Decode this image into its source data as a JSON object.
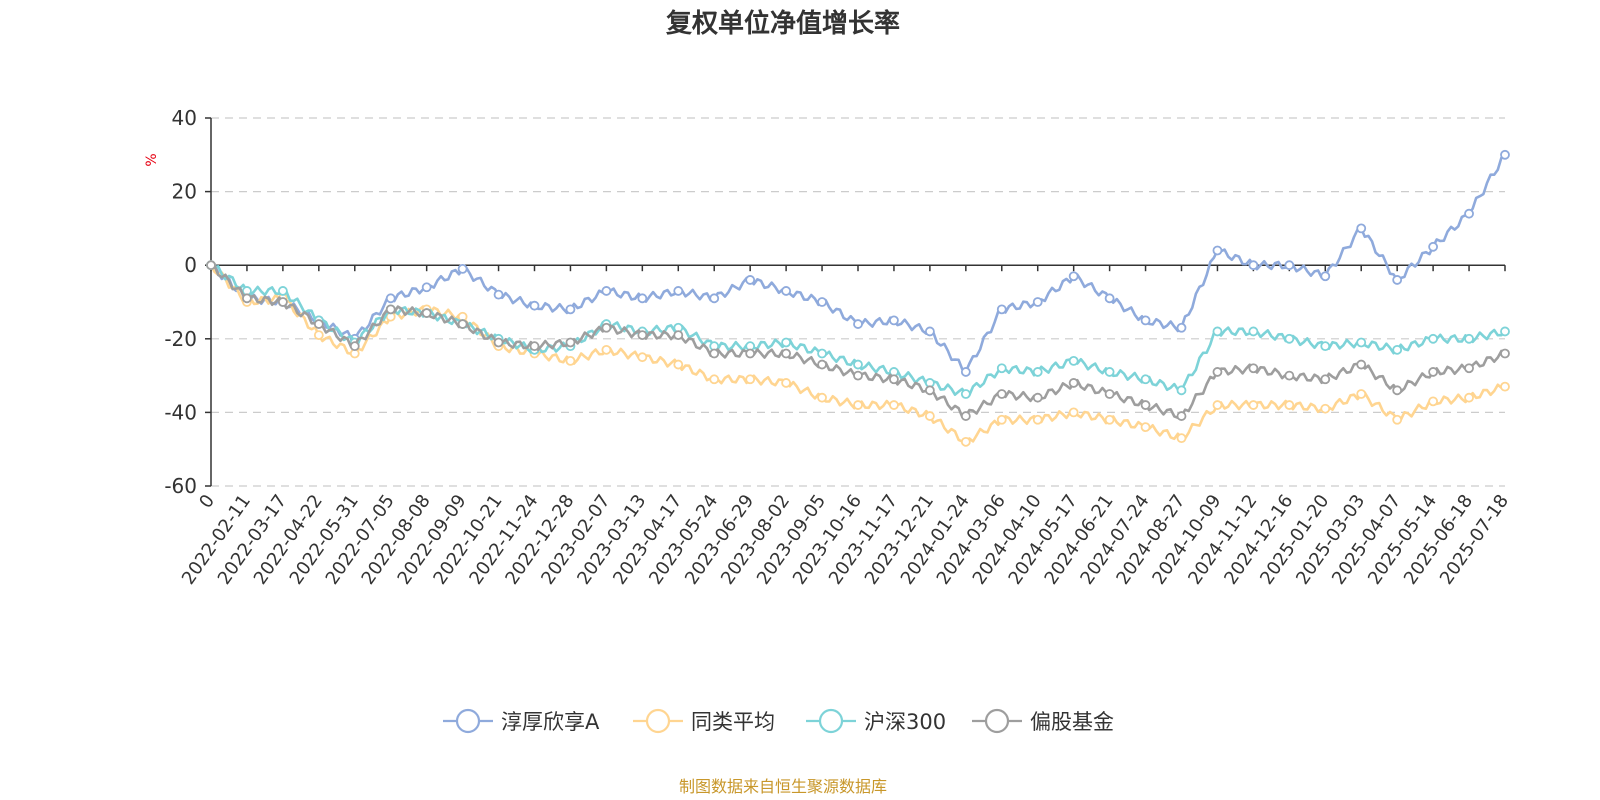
{
  "chart_data": {
    "type": "line",
    "title": "复权单位净值增长率",
    "ylabel": "%",
    "ylim": [
      -60,
      40
    ],
    "yticks": [
      40,
      20,
      0,
      -20,
      -40,
      -60
    ],
    "grid": true,
    "legend_position": "bottom",
    "source": "制图数据来自恒生聚源数据库",
    "categories": [
      "0",
      "2022-02-11",
      "2022-03-17",
      "2022-04-22",
      "2022-05-31",
      "2022-07-05",
      "2022-08-08",
      "2022-09-09",
      "2022-10-21",
      "2022-11-24",
      "2022-12-28",
      "2023-02-07",
      "2023-03-13",
      "2023-04-17",
      "2023-05-24",
      "2023-06-29",
      "2023-08-02",
      "2023-09-05",
      "2023-10-16",
      "2023-11-17",
      "2023-12-21",
      "2024-01-24",
      "2024-03-06",
      "2024-04-10",
      "2024-05-17",
      "2024-06-21",
      "2024-07-24",
      "2024-08-27",
      "2024-10-09",
      "2024-11-12",
      "2024-12-16",
      "2025-01-20",
      "2025-03-03",
      "2025-04-07",
      "2025-05-14",
      "2025-06-18",
      "2025-07-18"
    ],
    "series": [
      {
        "name": "淳厚欣享A",
        "color": "#8faadc",
        "values": [
          0,
          -9,
          -10,
          -15,
          -20,
          -9,
          -6,
          -1,
          -8,
          -11,
          -12,
          -7,
          -9,
          -7,
          -9,
          -4,
          -7,
          -10,
          -16,
          -15,
          -18,
          -29,
          -12,
          -10,
          -3,
          -9,
          -15,
          -17,
          4,
          0,
          0,
          -3,
          10,
          -4,
          5,
          14,
          30
        ]
      },
      {
        "name": "同类平均",
        "color": "#ffd591",
        "values": [
          0,
          -10,
          -9,
          -19,
          -24,
          -14,
          -12,
          -14,
          -22,
          -24,
          -26,
          -23,
          -25,
          -27,
          -31,
          -31,
          -32,
          -36,
          -38,
          -38,
          -41,
          -48,
          -42,
          -42,
          -40,
          -42,
          -44,
          -47,
          -38,
          -38,
          -38,
          -39,
          -35,
          -42,
          -37,
          -36,
          -33
        ]
      },
      {
        "name": "沪深300",
        "color": "#7dd3d8",
        "values": [
          0,
          -7,
          -7,
          -15,
          -21,
          -12,
          -13,
          -16,
          -20,
          -23,
          -22,
          -16,
          -18,
          -17,
          -22,
          -22,
          -21,
          -24,
          -27,
          -29,
          -32,
          -35,
          -28,
          -29,
          -26,
          -29,
          -31,
          -34,
          -18,
          -18,
          -20,
          -22,
          -21,
          -23,
          -20,
          -20,
          -18
        ]
      },
      {
        "name": "偏股基金",
        "color": "#9e9e9e",
        "values": [
          0,
          -9,
          -10,
          -16,
          -22,
          -12,
          -13,
          -16,
          -21,
          -22,
          -21,
          -17,
          -19,
          -19,
          -24,
          -24,
          -24,
          -27,
          -30,
          -31,
          -34,
          -41,
          -35,
          -36,
          -32,
          -35,
          -38,
          -41,
          -29,
          -28,
          -30,
          -31,
          -27,
          -34,
          -29,
          -28,
          -24
        ]
      }
    ]
  }
}
